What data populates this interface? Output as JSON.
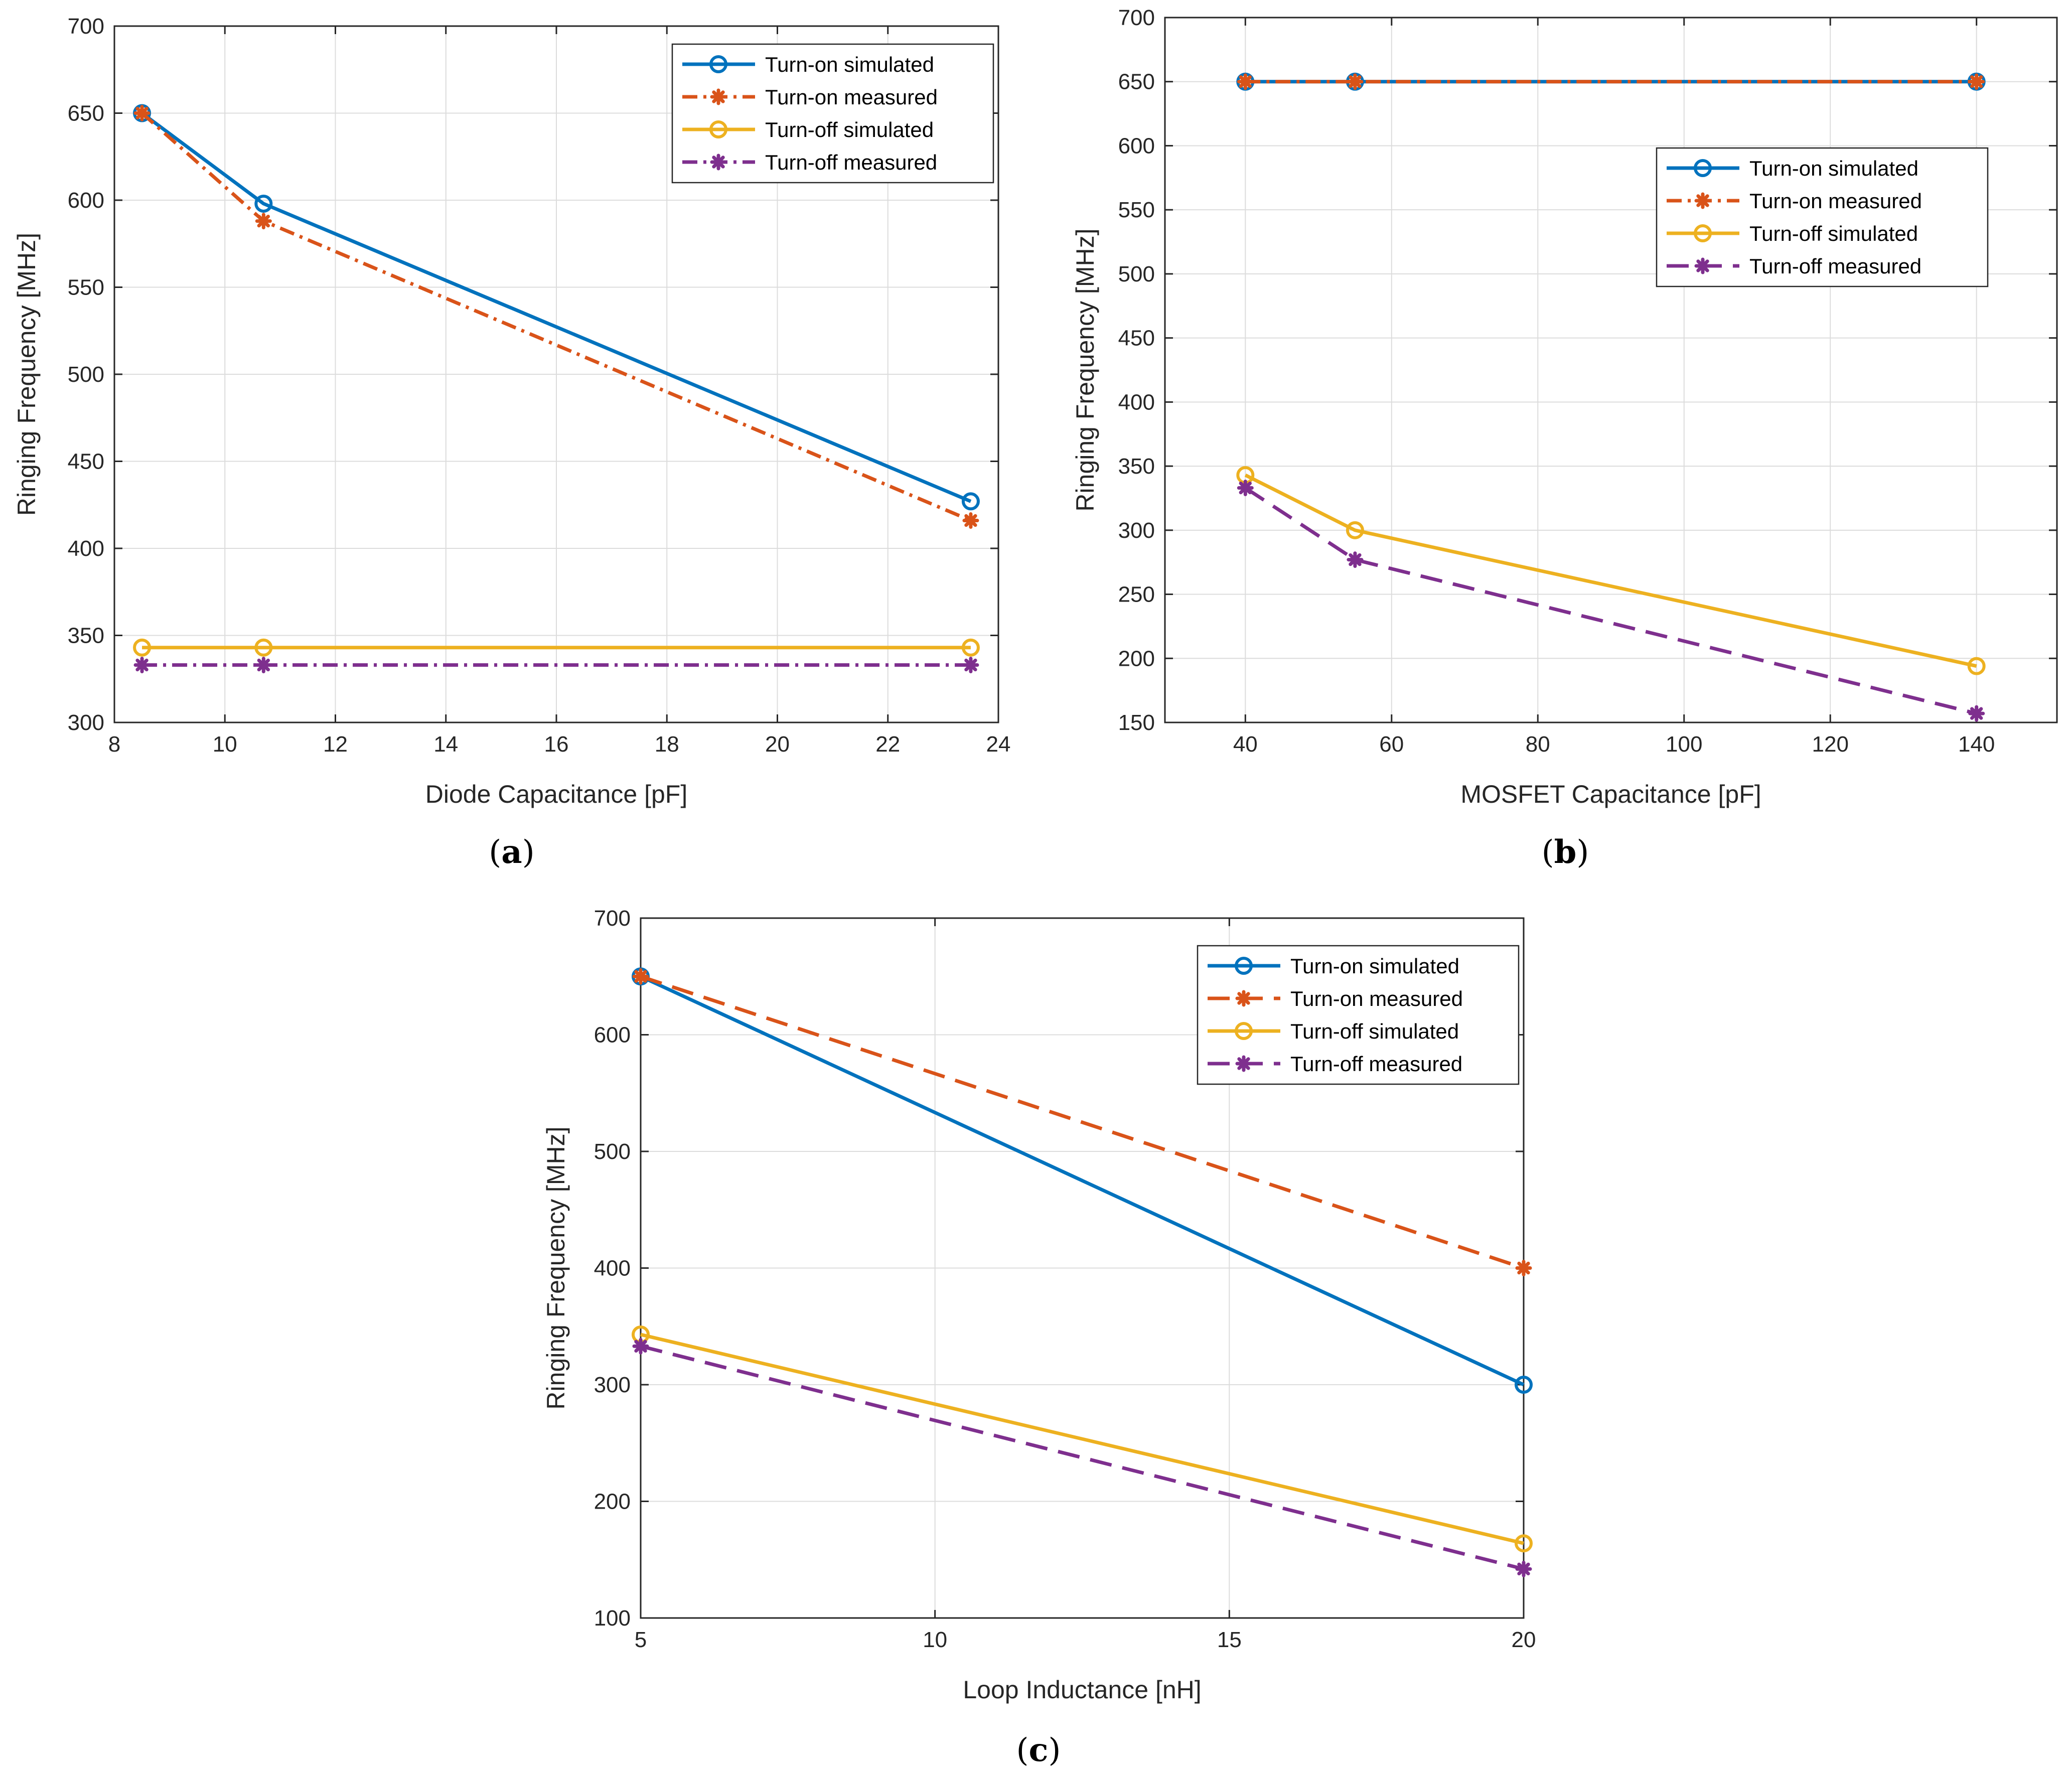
{
  "colors": {
    "turn_on_simulated": "#0072BD",
    "turn_on_measured": "#D95319",
    "turn_off_simulated": "#EDB120",
    "turn_off_measured": "#7E2F8E",
    "grid": "#dcdcdc",
    "axis": "#262626"
  },
  "chart_data": [
    {
      "id": "a",
      "type": "line",
      "panel_label": "a",
      "xlabel": "Diode Capacitance  [pF]",
      "ylabel": "Ringing Frequency [MHz]",
      "xlim": [
        8,
        24
      ],
      "ylim": [
        300,
        700
      ],
      "xticks": [
        8,
        10,
        12,
        14,
        16,
        18,
        20,
        22,
        24
      ],
      "yticks": [
        300,
        350,
        400,
        450,
        500,
        550,
        600,
        650,
        700
      ],
      "grid": true,
      "legend": "top-right",
      "x": [
        8.5,
        10.7,
        23.5
      ],
      "series": [
        {
          "name": "Turn-on simulated",
          "key": "turn_on_simulated",
          "style": "solid",
          "marker": "circle",
          "values": [
            650,
            598,
            427
          ]
        },
        {
          "name": "Turn-on measured",
          "key": "turn_on_measured",
          "style": "dashdot",
          "marker": "star",
          "values": [
            650,
            588,
            416
          ]
        },
        {
          "name": "Turn-off simulated",
          "key": "turn_off_simulated",
          "style": "solid",
          "marker": "circle",
          "values": [
            343,
            343,
            343
          ]
        },
        {
          "name": "Turn-off measured",
          "key": "turn_off_measured",
          "style": "dashdot",
          "marker": "star",
          "values": [
            333,
            333,
            333
          ]
        }
      ]
    },
    {
      "id": "b",
      "type": "line",
      "panel_label": "b",
      "xlabel": "MOSFET Capacitance  [pF]",
      "ylabel": "Ringing Frequency [MHz]",
      "xlim": [
        29,
        151
      ],
      "ylim": [
        150,
        700
      ],
      "xticks": [
        40,
        60,
        80,
        100,
        120,
        140
      ],
      "yticks": [
        150,
        200,
        250,
        300,
        350,
        400,
        450,
        500,
        550,
        600,
        650,
        700
      ],
      "grid": true,
      "legend": "upper-right",
      "x": [
        40,
        55,
        140
      ],
      "series": [
        {
          "name": "Turn-on simulated",
          "key": "turn_on_simulated",
          "style": "solid",
          "marker": "circle",
          "values": [
            650,
            650,
            650
          ]
        },
        {
          "name": "Turn-on measured",
          "key": "turn_on_measured",
          "style": "dashdot",
          "marker": "star",
          "values": [
            650,
            650,
            650
          ]
        },
        {
          "name": "Turn-off simulated",
          "key": "turn_off_simulated",
          "style": "solid",
          "marker": "circle",
          "values": [
            343,
            300,
            194
          ]
        },
        {
          "name": "Turn-off measured",
          "key": "turn_off_measured",
          "style": "longdash",
          "marker": "star",
          "values": [
            333,
            277,
            157
          ]
        }
      ]
    },
    {
      "id": "c",
      "type": "line",
      "panel_label": "c",
      "xlabel": "Loop Inductance  [nH]",
      "ylabel": "Ringing Frequency [MHz]",
      "xlim": [
        5,
        20
      ],
      "ylim": [
        100,
        700
      ],
      "xticks": [
        5,
        10,
        15,
        20
      ],
      "yticks": [
        100,
        200,
        300,
        400,
        500,
        600,
        700
      ],
      "grid": true,
      "legend": "top-right",
      "x": [
        5,
        20
      ],
      "series": [
        {
          "name": "Turn-on simulated",
          "key": "turn_on_simulated",
          "style": "solid",
          "marker": "circle",
          "values": [
            650,
            300
          ]
        },
        {
          "name": "Turn-on measured",
          "key": "turn_on_measured",
          "style": "longdash",
          "marker": "star",
          "values": [
            650,
            400
          ]
        },
        {
          "name": "Turn-off simulated",
          "key": "turn_off_simulated",
          "style": "solid",
          "marker": "circle",
          "values": [
            343,
            164
          ]
        },
        {
          "name": "Turn-off measured",
          "key": "turn_off_measured",
          "style": "longdash",
          "marker": "star",
          "values": [
            333,
            142
          ]
        }
      ]
    }
  ]
}
